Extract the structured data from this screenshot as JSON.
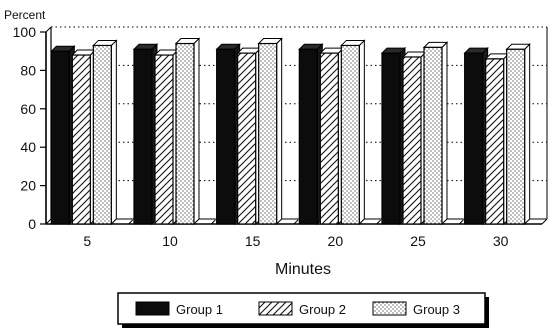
{
  "chart_data": {
    "type": "bar",
    "ylabel": "Percent",
    "xlabel": "Minutes",
    "categories": [
      "5",
      "10",
      "15",
      "20",
      "25",
      "30"
    ],
    "ylim": [
      0,
      100
    ],
    "yticks": [
      0,
      20,
      40,
      60,
      80,
      100
    ],
    "grid": "dotted horizontal",
    "legend_position": "bottom",
    "series": [
      {
        "name": "Group  1",
        "pattern": "solid-black",
        "values": [
          90,
          91,
          91,
          91,
          89,
          89
        ]
      },
      {
        "name": "Group  2",
        "pattern": "diagonal-hatch",
        "values": [
          88,
          88,
          89,
          89,
          87,
          86
        ]
      },
      {
        "name": "Group  3",
        "pattern": "dotted",
        "values": [
          93,
          94,
          94,
          93,
          92,
          91
        ]
      }
    ]
  }
}
